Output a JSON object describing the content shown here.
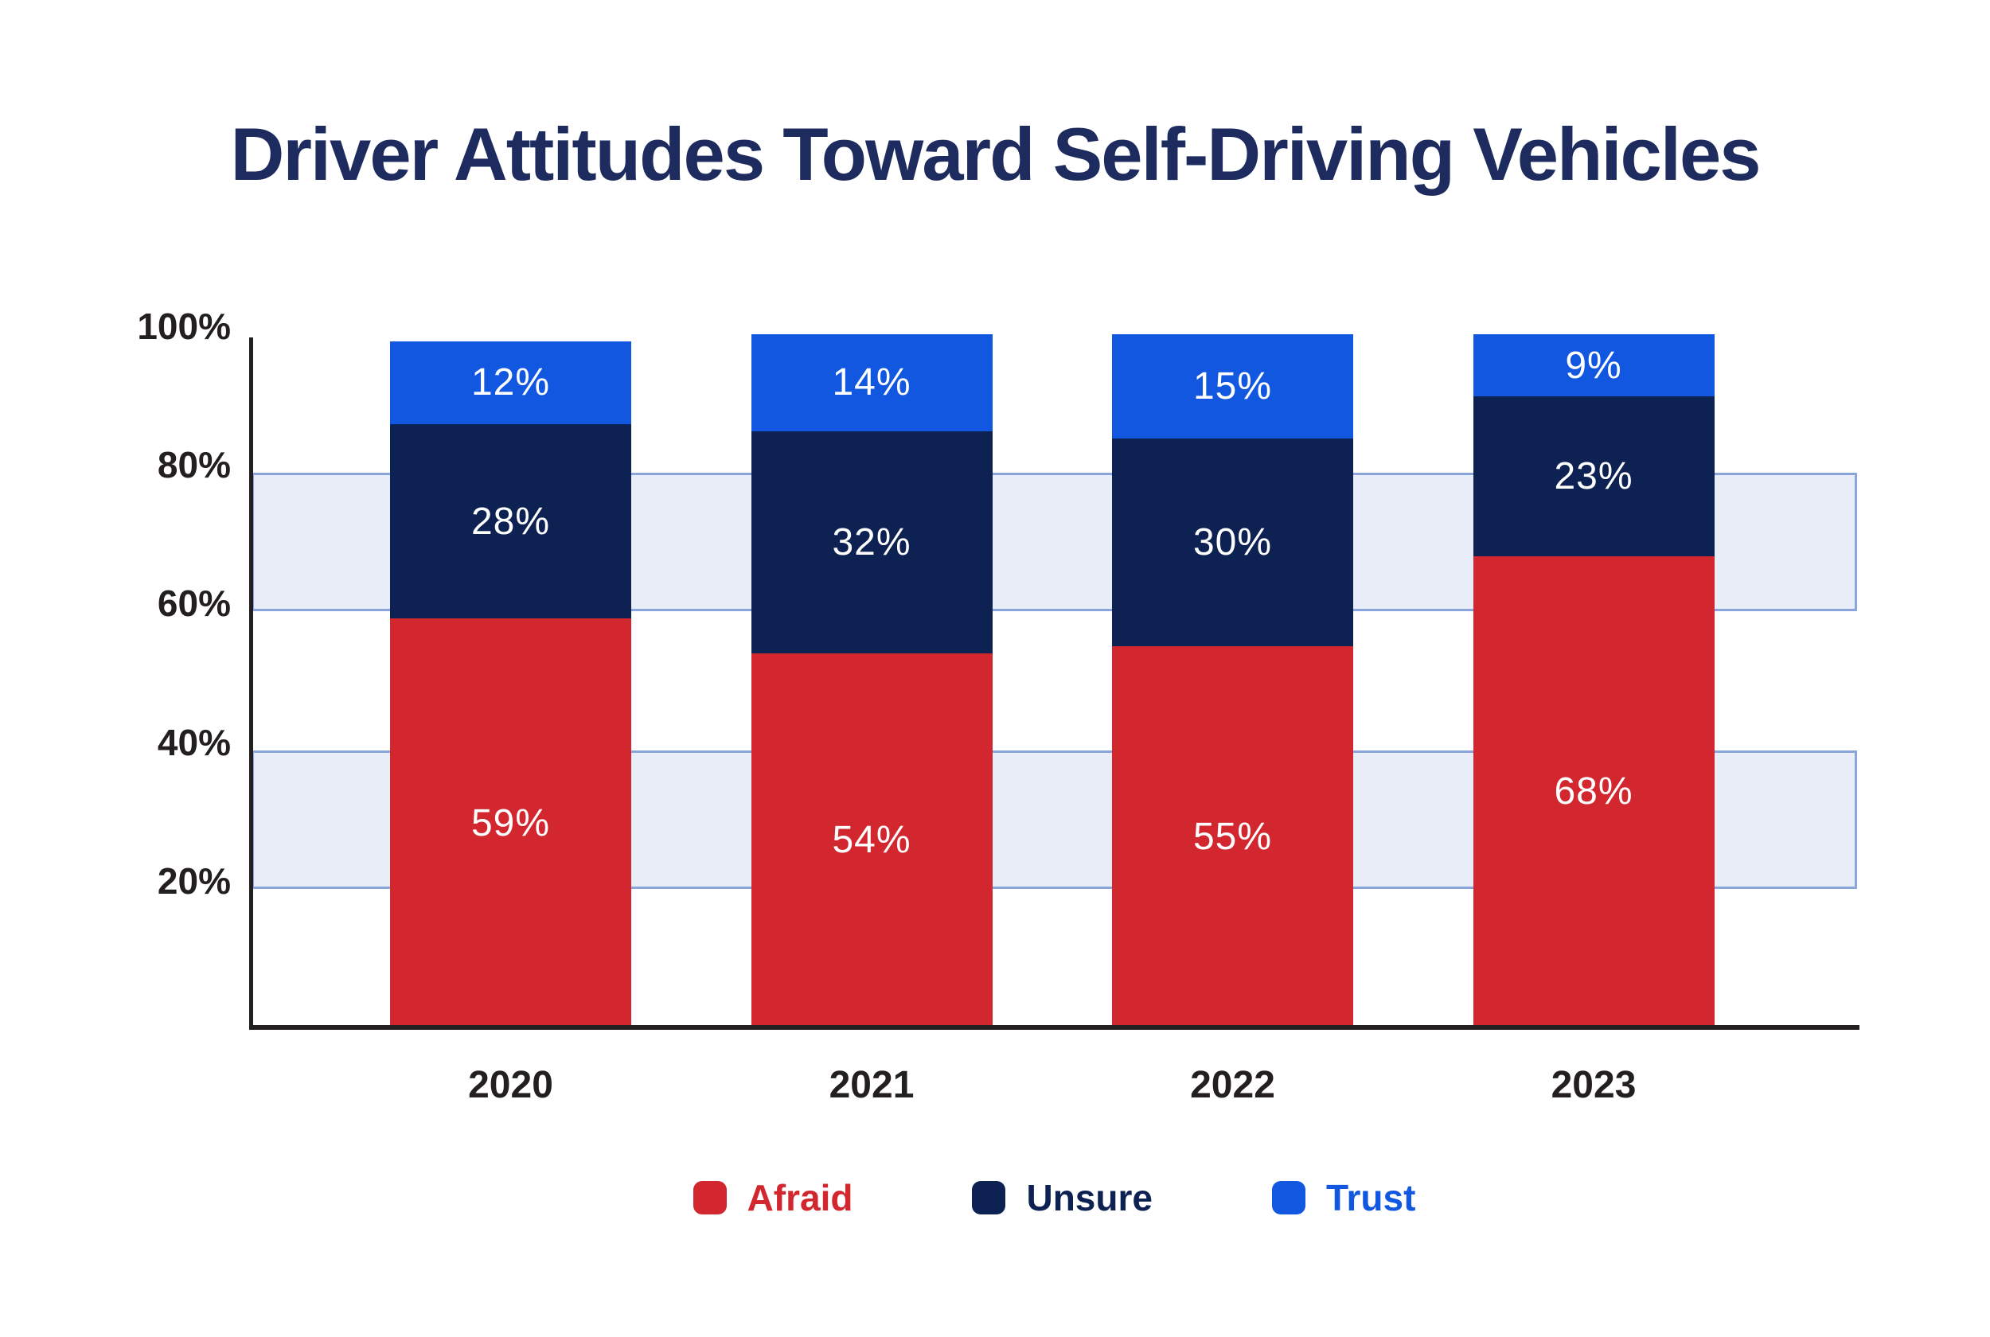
{
  "title": {
    "text": "Driver Attitudes Toward Self-Driving Vehicles",
    "color": "#1d2b5e"
  },
  "chart_data": {
    "type": "bar",
    "stacked": true,
    "title": "Driver Attitudes Toward Self-Driving Vehicles",
    "categories": [
      "2020",
      "2021",
      "2022",
      "2023"
    ],
    "series": [
      {
        "name": "Afraid",
        "color": "#d2272e",
        "values": [
          59,
          54,
          55,
          68
        ]
      },
      {
        "name": "Unsure",
        "color": "#0d2152",
        "values": [
          28,
          32,
          30,
          23
        ]
      },
      {
        "name": "Trust",
        "color": "#1257e0",
        "values": [
          12,
          14,
          15,
          9
        ]
      }
    ],
    "value_suffix": "%",
    "bar_value_label_color": "#ffffff",
    "xlabel": "",
    "ylabel": "",
    "ylim": [
      0,
      100
    ],
    "ytick_values": [
      20,
      40,
      60,
      80,
      100
    ],
    "ytick_labels": [
      "20%",
      "40%",
      "60%",
      "80%",
      "100%"
    ],
    "grid": "bands",
    "grid_bands": [
      {
        "from": 20,
        "to": 40
      },
      {
        "from": 60,
        "to": 80
      }
    ],
    "band_fill_color": "#e8edf8",
    "band_border_color": "#8aa5dc",
    "axis_color": "#231f20",
    "tick_label_color": "#231f20",
    "legend_position": "bottom",
    "legend_labels": [
      "Afraid",
      "Unsure",
      "Trust"
    ]
  }
}
